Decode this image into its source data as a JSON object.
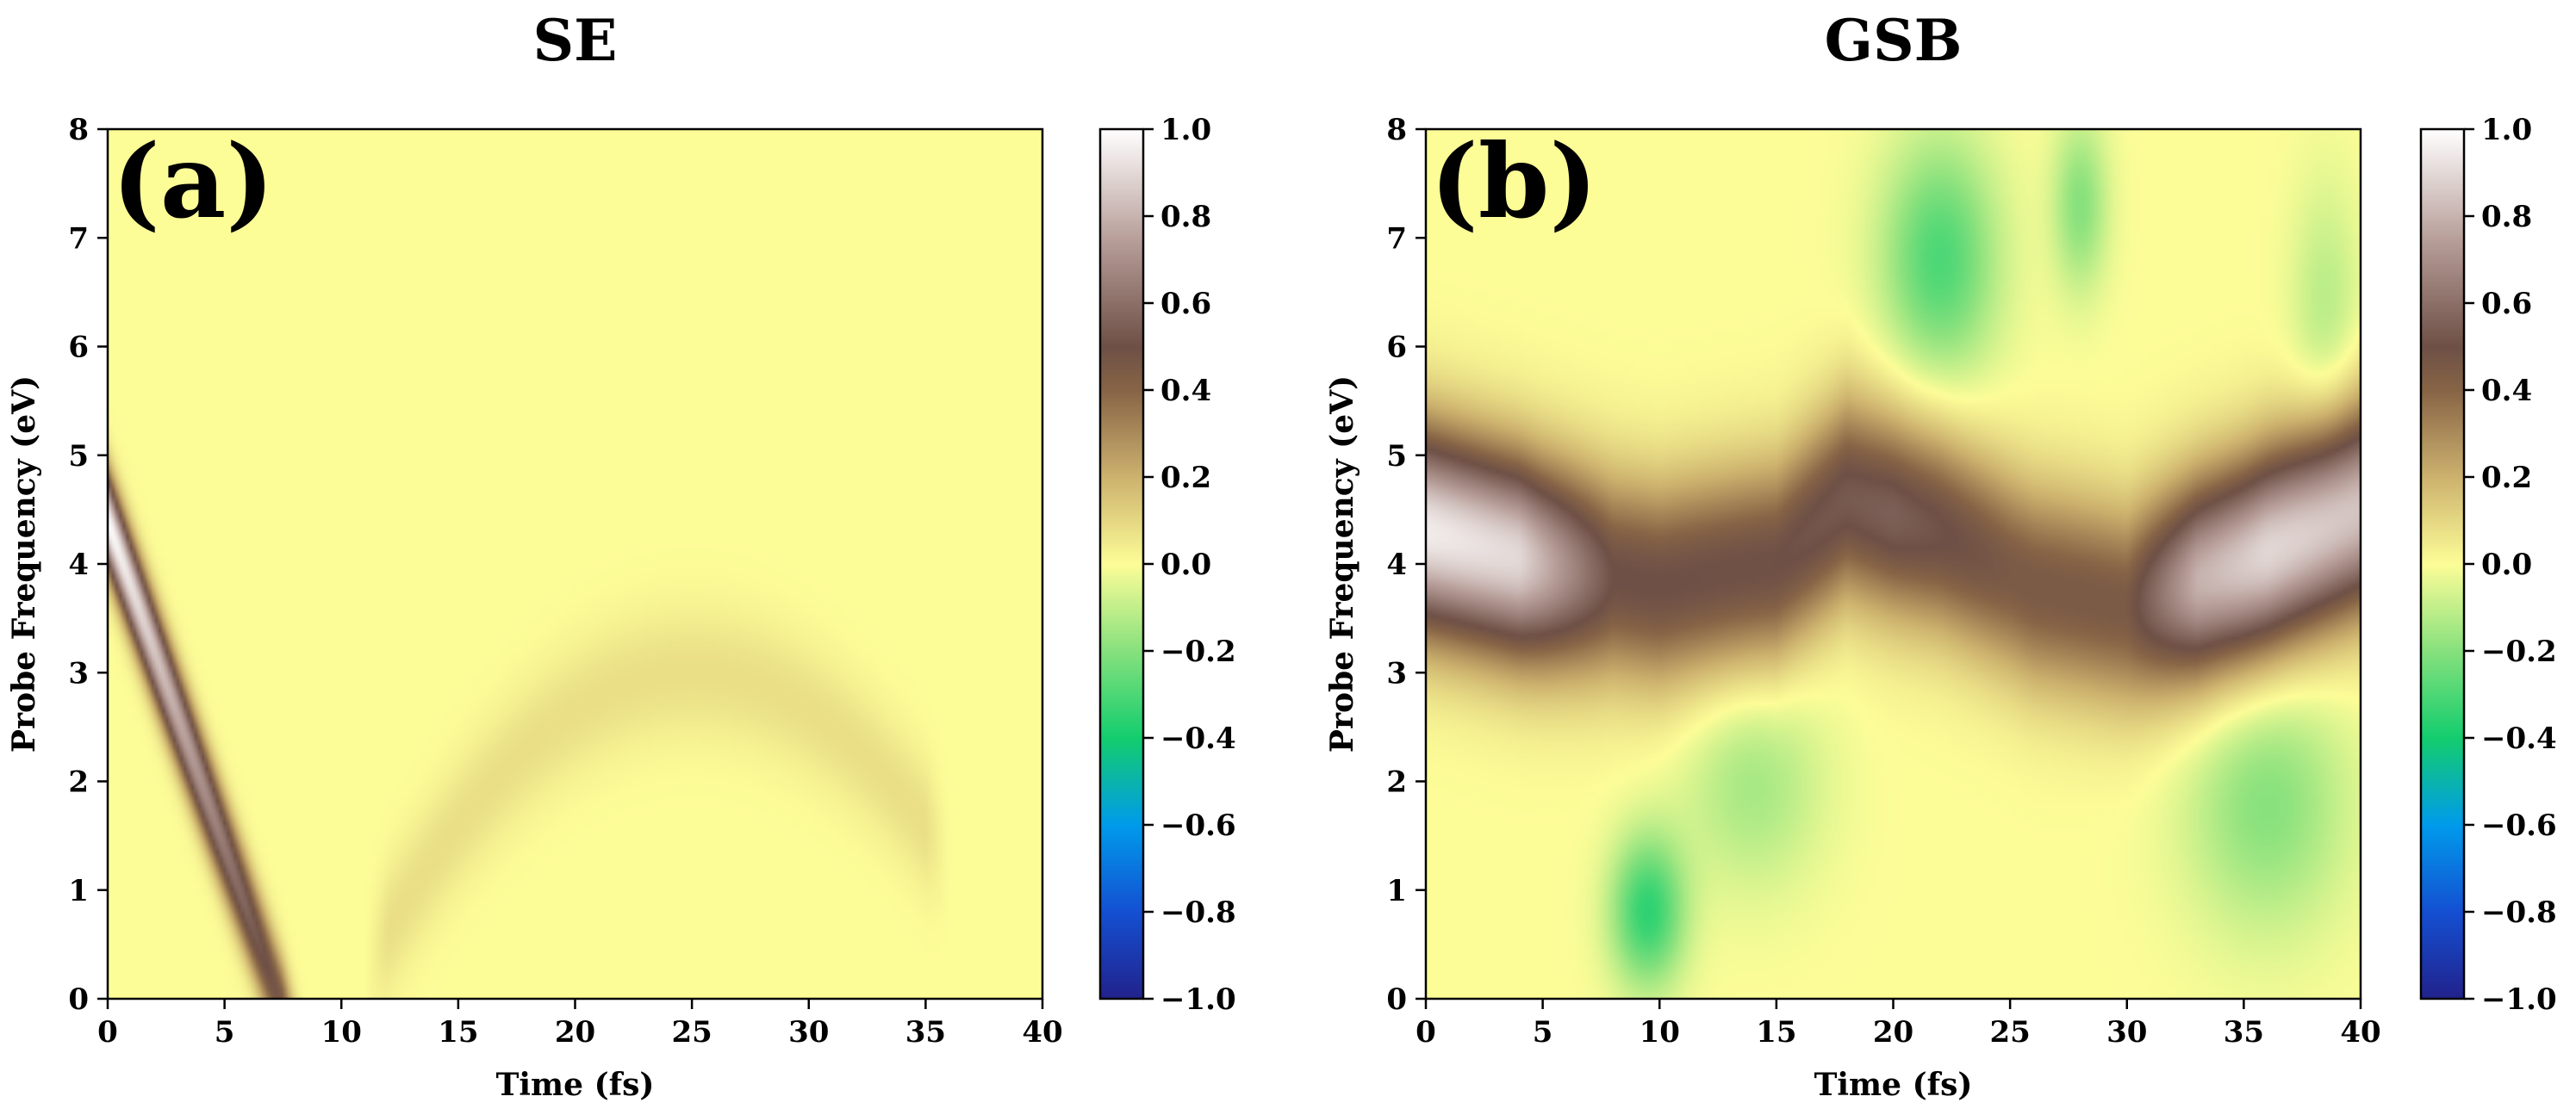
{
  "chart_data": [
    {
      "type": "heatmap",
      "panel_label": "(a)",
      "title": "SE",
      "xlabel": "Time (fs)",
      "ylabel": "Probe Frequency (eV)",
      "xlim": [
        0,
        40
      ],
      "ylim": [
        0,
        8
      ],
      "x_ticks": [
        0,
        5,
        10,
        15,
        20,
        25,
        30,
        35,
        40
      ],
      "y_ticks": [
        0,
        1,
        2,
        3,
        4,
        5,
        6,
        7,
        8
      ],
      "colorbar": {
        "range": [
          -1.0,
          1.0
        ],
        "ticks": [
          "1.0",
          "0.8",
          "0.6",
          "0.4",
          "0.2",
          "0.0",
          "−0.2",
          "−0.4",
          "−0.6",
          "−0.8",
          "−1.0"
        ]
      },
      "features": [
        {
          "t0": 0,
          "e0": 4.4,
          "e_slope": -0.6,
          "e_curv": 0,
          "t_end": 7.5,
          "width": 0.45,
          "amp_start": 1.0,
          "amp_end": 0.45
        },
        {
          "t0": 25,
          "e0": 3.0,
          "e_slope": 0,
          "e_curv": -0.014,
          "t_end": 35,
          "t_start": 12,
          "width": 0.6,
          "amp_start": 0.08,
          "amp_end": 0.08
        }
      ]
    },
    {
      "type": "heatmap",
      "panel_label": "(b)",
      "title": "GSB",
      "xlabel": "Time (fs)",
      "ylabel": "Probe Frequency (eV)",
      "xlim": [
        0,
        40
      ],
      "ylim": [
        0,
        8
      ],
      "x_ticks": [
        0,
        5,
        10,
        15,
        20,
        25,
        30,
        35,
        40
      ],
      "y_ticks": [
        0,
        1,
        2,
        3,
        4,
        5,
        6,
        7,
        8
      ],
      "colorbar": {
        "range": [
          -1.0,
          1.0
        ],
        "ticks": [
          "1.0",
          "0.8",
          "0.6",
          "0.4",
          "0.2",
          "0.0",
          "−0.2",
          "−0.4",
          "−0.6",
          "−0.8",
          "−1.0"
        ]
      },
      "band": {
        "center": [
          [
            0,
            4.3
          ],
          [
            5,
            4.0
          ],
          [
            10,
            3.8
          ],
          [
            15,
            4.0
          ],
          [
            18,
            4.6
          ],
          [
            22,
            4.3
          ],
          [
            26,
            3.8
          ],
          [
            30,
            3.6
          ],
          [
            35,
            4.0
          ],
          [
            40,
            4.5
          ]
        ],
        "amplitude": [
          [
            0,
            0.95
          ],
          [
            4,
            0.9
          ],
          [
            8,
            0.5
          ],
          [
            15,
            0.5
          ],
          [
            20,
            0.55
          ],
          [
            25,
            0.45
          ],
          [
            30,
            0.45
          ],
          [
            33,
            0.8
          ],
          [
            36,
            0.9
          ],
          [
            40,
            0.85
          ]
        ],
        "width": 0.95
      },
      "negative_features": [
        {
          "t": 9.5,
          "e": 0.8,
          "w_t": 1.6,
          "w_e": 0.7,
          "amp": -0.35
        },
        {
          "t": 14,
          "e": 2.0,
          "w_t": 3.0,
          "w_e": 1.0,
          "amp": -0.15
        },
        {
          "t": 22,
          "e": 6.8,
          "w_t": 2.5,
          "w_e": 1.1,
          "amp": -0.3
        },
        {
          "t": 28,
          "e": 7.3,
          "w_t": 1.2,
          "w_e": 0.8,
          "amp": -0.2
        },
        {
          "t": 36,
          "e": 1.8,
          "w_t": 3.5,
          "w_e": 1.2,
          "amp": -0.2
        },
        {
          "t": 38.5,
          "e": 6.3,
          "w_t": 1.5,
          "w_e": 1.2,
          "amp": -0.12
        }
      ]
    }
  ]
}
